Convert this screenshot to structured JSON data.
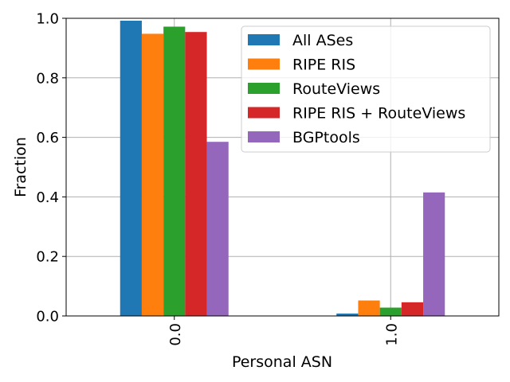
{
  "chart_data": {
    "type": "bar",
    "categories": [
      "0.0",
      "1.0"
    ],
    "series": [
      {
        "name": "All ASes",
        "values": [
          0.992,
          0.008
        ],
        "color": "#1f77b4"
      },
      {
        "name": "RIPE RIS",
        "values": [
          0.948,
          0.052
        ],
        "color": "#ff7f0e"
      },
      {
        "name": "RouteViews",
        "values": [
          0.972,
          0.028
        ],
        "color": "#2ca02c"
      },
      {
        "name": "RIPE RIS + RouteViews",
        "values": [
          0.954,
          0.046
        ],
        "color": "#d62728"
      },
      {
        "name": "BGPtools",
        "values": [
          0.585,
          0.415
        ],
        "color": "#9467bd"
      }
    ],
    "xlabel": "Personal ASN",
    "ylabel": "Fraction",
    "ylim": [
      0,
      1.0
    ],
    "yticks": [
      "0.0",
      "0.2",
      "0.4",
      "0.6",
      "0.8",
      "1.0"
    ],
    "grid": true,
    "legend_position": "top-right"
  }
}
